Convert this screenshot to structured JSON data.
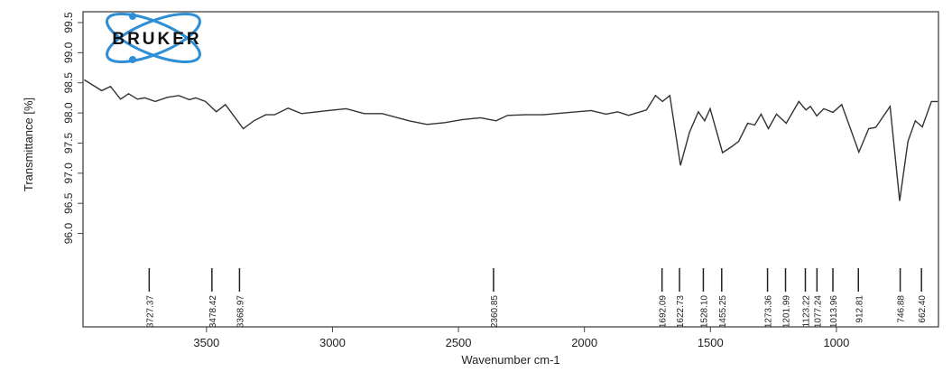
{
  "chart_data": {
    "type": "line",
    "title": "",
    "xlabel": "Wavenumber cm-1",
    "ylabel": "Transmittance [%]",
    "xlim": [
      3990,
      595
    ],
    "ylim": [
      94.45,
      99.68
    ],
    "x_reversed": true,
    "grid": false,
    "logo": "BRUKER",
    "logo_colors": {
      "orbit": "#2f8fd6",
      "text": "#111111"
    },
    "line_color": "#333333",
    "x_ticks": [
      3500,
      3000,
      2500,
      2000,
      1500,
      1000
    ],
    "x_tick_labels": [
      "3500",
      "3000",
      "2500",
      "2000",
      "1500",
      "1000"
    ],
    "y_ticks": [
      96.0,
      96.5,
      97.0,
      97.5,
      98.0,
      98.5,
      99.0,
      99.5
    ],
    "y_tick_labels": [
      "96.0",
      "96.5",
      "97.0",
      "97.5",
      "98.0",
      "98.5",
      "99.0",
      "99.5"
    ],
    "series": [
      {
        "x": [
          3985,
          3916,
          3881,
          3841,
          3809,
          3774,
          3745,
          3703,
          3656,
          3610,
          3568,
          3543,
          3504,
          3461,
          3425,
          3354,
          3312,
          3265,
          3230,
          3176,
          3123,
          3016,
          2945,
          2874,
          2803,
          2696,
          2625,
          2554,
          2483,
          2412,
          2351,
          2305,
          2234,
          2163,
          1974,
          1914,
          1868,
          1825,
          1754,
          1718,
          1690,
          1661,
          1619,
          1583,
          1548,
          1523,
          1501,
          1452,
          1416,
          1388,
          1352,
          1324,
          1299,
          1270,
          1238,
          1199,
          1149,
          1121,
          1103,
          1078,
          1050,
          1014,
          979,
          911,
          872,
          844,
          787,
          749,
          716,
          687,
          659,
          623,
          598
        ],
        "y": [
          98.55,
          98.37,
          98.44,
          98.23,
          98.32,
          98.23,
          98.25,
          98.19,
          98.26,
          98.29,
          98.22,
          98.25,
          98.19,
          98.02,
          98.14,
          97.74,
          97.87,
          97.97,
          97.97,
          98.08,
          97.99,
          98.04,
          98.07,
          97.99,
          97.99,
          97.87,
          97.81,
          97.84,
          97.89,
          97.92,
          97.87,
          97.96,
          97.97,
          97.97,
          98.04,
          97.98,
          98.02,
          97.96,
          98.05,
          98.29,
          98.19,
          98.29,
          97.13,
          97.68,
          98.02,
          97.87,
          98.07,
          97.34,
          97.44,
          97.53,
          97.83,
          97.8,
          97.98,
          97.74,
          97.98,
          97.83,
          98.19,
          98.05,
          98.11,
          97.95,
          98.07,
          98.01,
          98.14,
          97.35,
          97.74,
          97.76,
          98.11,
          96.54,
          97.53,
          97.87,
          97.77,
          98.19,
          98.19
        ]
      }
    ],
    "peak_labels": [
      "3727.37",
      "3478.42",
      "3368.97",
      "2360.85",
      "1692.09",
      "1622.73",
      "1528.10",
      "1455.25",
      "1273.36",
      "1201.99",
      "1123.22",
      "1077.24",
      "1013.96",
      "912.81",
      "746.88",
      "662.40"
    ]
  }
}
